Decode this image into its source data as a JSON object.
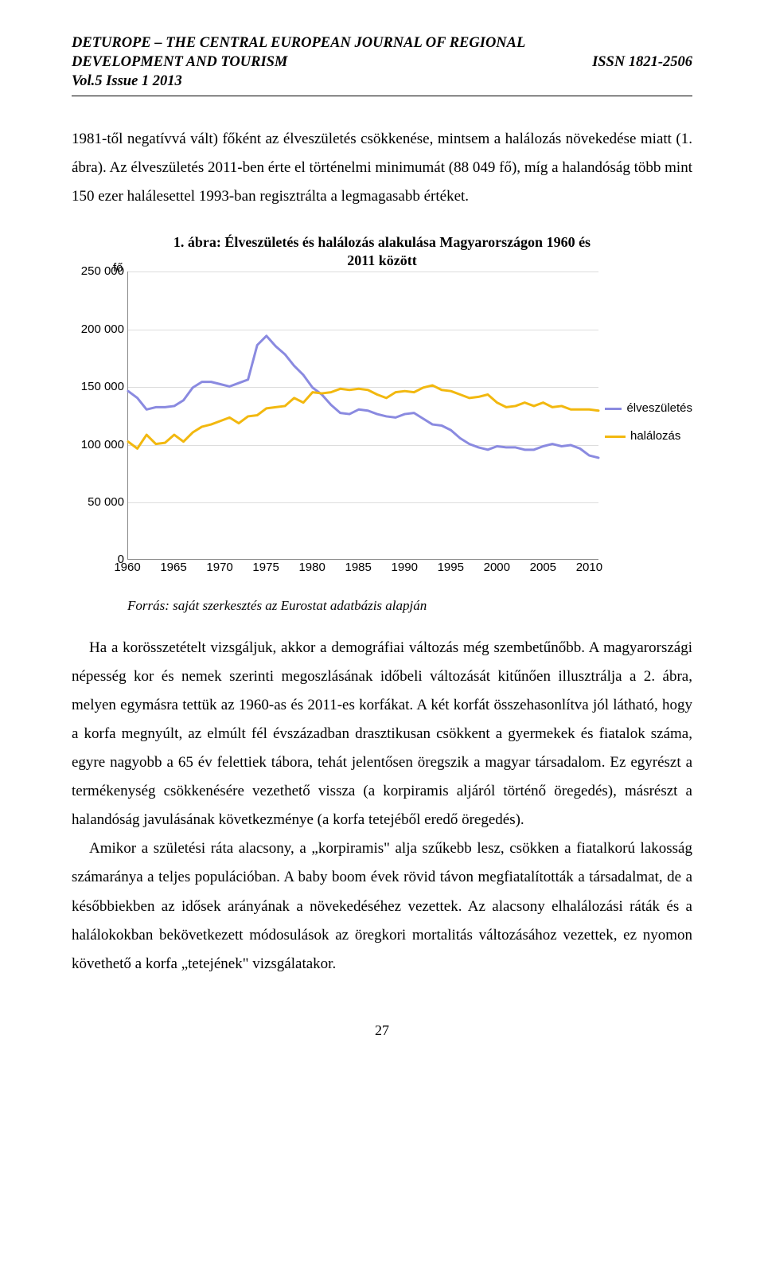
{
  "header": {
    "journal_line": "DETUROPE – THE CENTRAL EUROPEAN JOURNAL OF REGIONAL DEVELOPMENT AND TOURISM",
    "issue": "Vol.5 Issue 1 2013",
    "issn": "ISSN 1821-2506"
  },
  "paragraphs": {
    "p1": "1981-től negatívvá vált) főként az élveszületés csökkenése, mintsem a halálozás növekedése miatt (1. ábra). Az élveszületés 2011-ben érte el történelmi minimumát (88 049 fő), míg a halandóság több mint 150 ezer halálesettel 1993-ban regisztrálta a legmagasabb értéket.",
    "p2": "Ha a korösszetételt vizsgáljuk, akkor a demográfiai változás még szembetűnőbb. A magyarországi népesség kor és nemek szerinti megoszlásának időbeli változását kitűnően illusztrálja a 2. ábra, melyen egymásra tettük az 1960-as és 2011-es korfákat. A két korfát összehasonlítva jól látható, hogy a korfa megnyúlt, az elmúlt fél évszázadban drasztikusan csökkent a gyermekek és fiatalok száma, egyre nagyobb a 65 év felettiek tábora, tehát jelentősen öregszik a magyar társadalom. Ez egyrészt a termékenység csökkenésére vezethető vissza (a korpiramis aljáról történő öregedés), másrészt a halandóság javulásának következménye (a korfa tetejéből eredő öregedés).",
    "p3": "Amikor a születési ráta alacsony, a „korpiramis\" alja szűkebb lesz, csökken a fiatalkorú lakosság számaránya a teljes populációban. A baby boom évek rövid távon megfiatalították a társadalmat, de a későbbiekben az idősek arányának a növekedéséhez vezettek. Az alacsony elhalálozási ráták és a halálokokban bekövetkezett módosulások az öregkori mortalitás változásához vezettek, ez nyomon követhető a korfa „tetejének\" vizsgálatakor."
  },
  "chart": {
    "type": "line",
    "title": "1. ábra: Élveszületés és halálozás alakulása Magyarországon 1960 és 2011 között",
    "y_unit_label": "fő",
    "y_ticks": [
      0,
      50000,
      100000,
      150000,
      200000,
      250000
    ],
    "y_tick_labels": [
      "0",
      "50 000",
      "100 000",
      "150 000",
      "200 000",
      "250 000"
    ],
    "ylim": [
      0,
      250000
    ],
    "x_ticks": [
      1960,
      1965,
      1970,
      1975,
      1980,
      1985,
      1990,
      1995,
      2000,
      2005,
      2010
    ],
    "xlim": [
      1960,
      2011
    ],
    "series": [
      {
        "name": "élveszületés",
        "color": "#8a8ae0",
        "line_width": 3,
        "years": [
          1960,
          1961,
          1962,
          1963,
          1964,
          1965,
          1966,
          1967,
          1968,
          1969,
          1970,
          1971,
          1972,
          1973,
          1974,
          1975,
          1976,
          1977,
          1978,
          1979,
          1980,
          1981,
          1982,
          1983,
          1984,
          1985,
          1986,
          1987,
          1988,
          1989,
          1990,
          1991,
          1992,
          1993,
          1994,
          1995,
          1996,
          1997,
          1998,
          1999,
          2000,
          2001,
          2002,
          2003,
          2004,
          2005,
          2006,
          2007,
          2008,
          2009,
          2010,
          2011
        ],
        "values": [
          146000,
          140000,
          130000,
          132000,
          132000,
          133000,
          138000,
          149000,
          154000,
          154000,
          152000,
          150000,
          153000,
          156000,
          186000,
          194000,
          185000,
          178000,
          168000,
          160000,
          149000,
          143000,
          134000,
          127000,
          126000,
          130000,
          129000,
          126000,
          124000,
          123000,
          126000,
          127000,
          122000,
          117000,
          116000,
          112000,
          105000,
          100000,
          97000,
          95000,
          98000,
          97000,
          97000,
          95000,
          95000,
          98000,
          100000,
          98000,
          99000,
          96000,
          90000,
          88000
        ]
      },
      {
        "name": "halálozás",
        "color": "#f2b80f",
        "line_width": 3,
        "years": [
          1960,
          1961,
          1962,
          1963,
          1964,
          1965,
          1966,
          1967,
          1968,
          1969,
          1970,
          1971,
          1972,
          1973,
          1974,
          1975,
          1976,
          1977,
          1978,
          1979,
          1980,
          1981,
          1982,
          1983,
          1984,
          1985,
          1986,
          1987,
          1988,
          1989,
          1990,
          1991,
          1992,
          1993,
          1994,
          1995,
          1996,
          1997,
          1998,
          1999,
          2000,
          2001,
          2002,
          2003,
          2004,
          2005,
          2006,
          2007,
          2008,
          2009,
          2010,
          2011
        ],
        "values": [
          102000,
          96000,
          108000,
          100000,
          101000,
          108000,
          102000,
          110000,
          115000,
          117000,
          120000,
          123000,
          118000,
          124000,
          125000,
          131000,
          132000,
          133000,
          140000,
          136000,
          145000,
          144000,
          145000,
          148000,
          147000,
          148000,
          147000,
          143000,
          140000,
          145000,
          146000,
          145000,
          149000,
          151000,
          147000,
          146000,
          143000,
          140000,
          141000,
          143000,
          136000,
          132000,
          133000,
          136000,
          133000,
          136000,
          132000,
          133000,
          130000,
          130000,
          130000,
          129000
        ]
      }
    ],
    "legend": {
      "items": [
        "élveszületés",
        "halálozás"
      ]
    },
    "background_color": "#ffffff",
    "grid_color": "#dddddd",
    "axis_color": "#888888",
    "tick_font_family": "Arial",
    "tick_font_size": 15
  },
  "source_line": "Forrás: saját szerkesztés az Eurostat adatbázis alapján",
  "page_number": "27"
}
